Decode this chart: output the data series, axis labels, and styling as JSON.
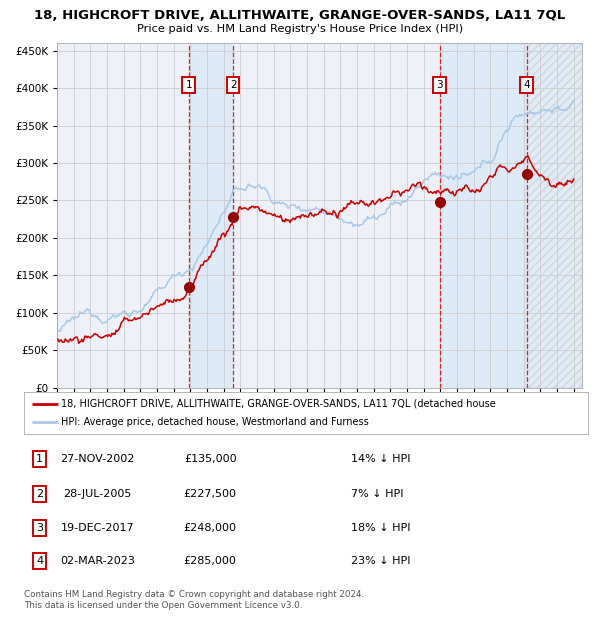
{
  "title": "18, HIGHCROFT DRIVE, ALLITHWAITE, GRANGE-OVER-SANDS, LA11 7QL",
  "subtitle": "Price paid vs. HM Land Registry's House Price Index (HPI)",
  "hpi_color": "#a8c8e8",
  "price_color": "#cc0000",
  "marker_color": "#990000",
  "background_color": "#ffffff",
  "plot_bg_color": "#eef2f8",
  "grid_color": "#cccccc",
  "transactions": [
    {
      "num": 1,
      "date": "27-NOV-2002",
      "date_val": 2002.9,
      "price": 135000,
      "pct": "14% ↓ HPI"
    },
    {
      "num": 2,
      "date": "28-JUL-2005",
      "date_val": 2005.57,
      "price": 227500,
      "pct": "7% ↓ HPI"
    },
    {
      "num": 3,
      "date": "19-DEC-2017",
      "date_val": 2017.96,
      "price": 248000,
      "pct": "18% ↓ HPI"
    },
    {
      "num": 4,
      "date": "02-MAR-2023",
      "date_val": 2023.17,
      "price": 285000,
      "pct": "23% ↓ HPI"
    }
  ],
  "xlim": [
    1995.0,
    2026.5
  ],
  "ylim": [
    0,
    460000
  ],
  "yticks": [
    0,
    50000,
    100000,
    150000,
    200000,
    250000,
    300000,
    350000,
    400000,
    450000
  ],
  "xticks": [
    1995,
    1996,
    1997,
    1998,
    1999,
    2000,
    2001,
    2002,
    2003,
    2004,
    2005,
    2006,
    2007,
    2008,
    2009,
    2010,
    2011,
    2012,
    2013,
    2014,
    2015,
    2016,
    2017,
    2018,
    2019,
    2020,
    2021,
    2022,
    2023,
    2024,
    2025,
    2026
  ],
  "legend_price_label": "18, HIGHCROFT DRIVE, ALLITHWAITE, GRANGE-OVER-SANDS, LA11 7QL (detached house",
  "legend_hpi_label": "HPI: Average price, detached house, Westmorland and Furness",
  "footnote": "Contains HM Land Registry data © Crown copyright and database right 2024.\nThis data is licensed under the Open Government Licence v3.0.",
  "span_color": "#ddeaf7",
  "hatch_color": "#b8cfe0"
}
